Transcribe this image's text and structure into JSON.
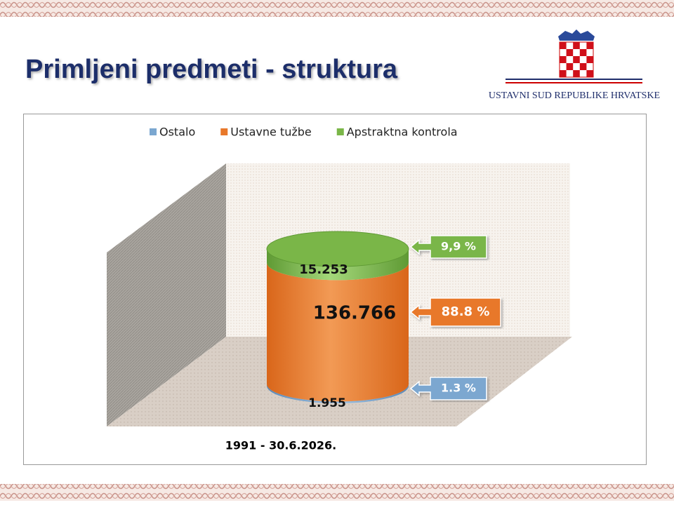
{
  "chart_data": {
    "type": "cylinder-stack",
    "title": "Primljeni predmeti - struktura",
    "logo_text": "USTAVNI SUD REPUBLIKE HRVATSKE",
    "categories": [
      "1991 - 30.6.2026."
    ],
    "series": [
      {
        "name": "Ostalo",
        "color": "#7ba7d0",
        "values": [
          1955
        ],
        "value_labels": [
          "1.955"
        ],
        "callout": "1.3 %"
      },
      {
        "name": "Ustavne tužbe",
        "color": "#e8782a",
        "values": [
          136766
        ],
        "value_labels": [
          "136.766"
        ],
        "callout": "88.8 %"
      },
      {
        "name": "Apstraktna kontrola",
        "color": "#7ab648",
        "values": [
          15253
        ],
        "value_labels": [
          "15.253"
        ],
        "callout": "9,9 %"
      }
    ]
  }
}
